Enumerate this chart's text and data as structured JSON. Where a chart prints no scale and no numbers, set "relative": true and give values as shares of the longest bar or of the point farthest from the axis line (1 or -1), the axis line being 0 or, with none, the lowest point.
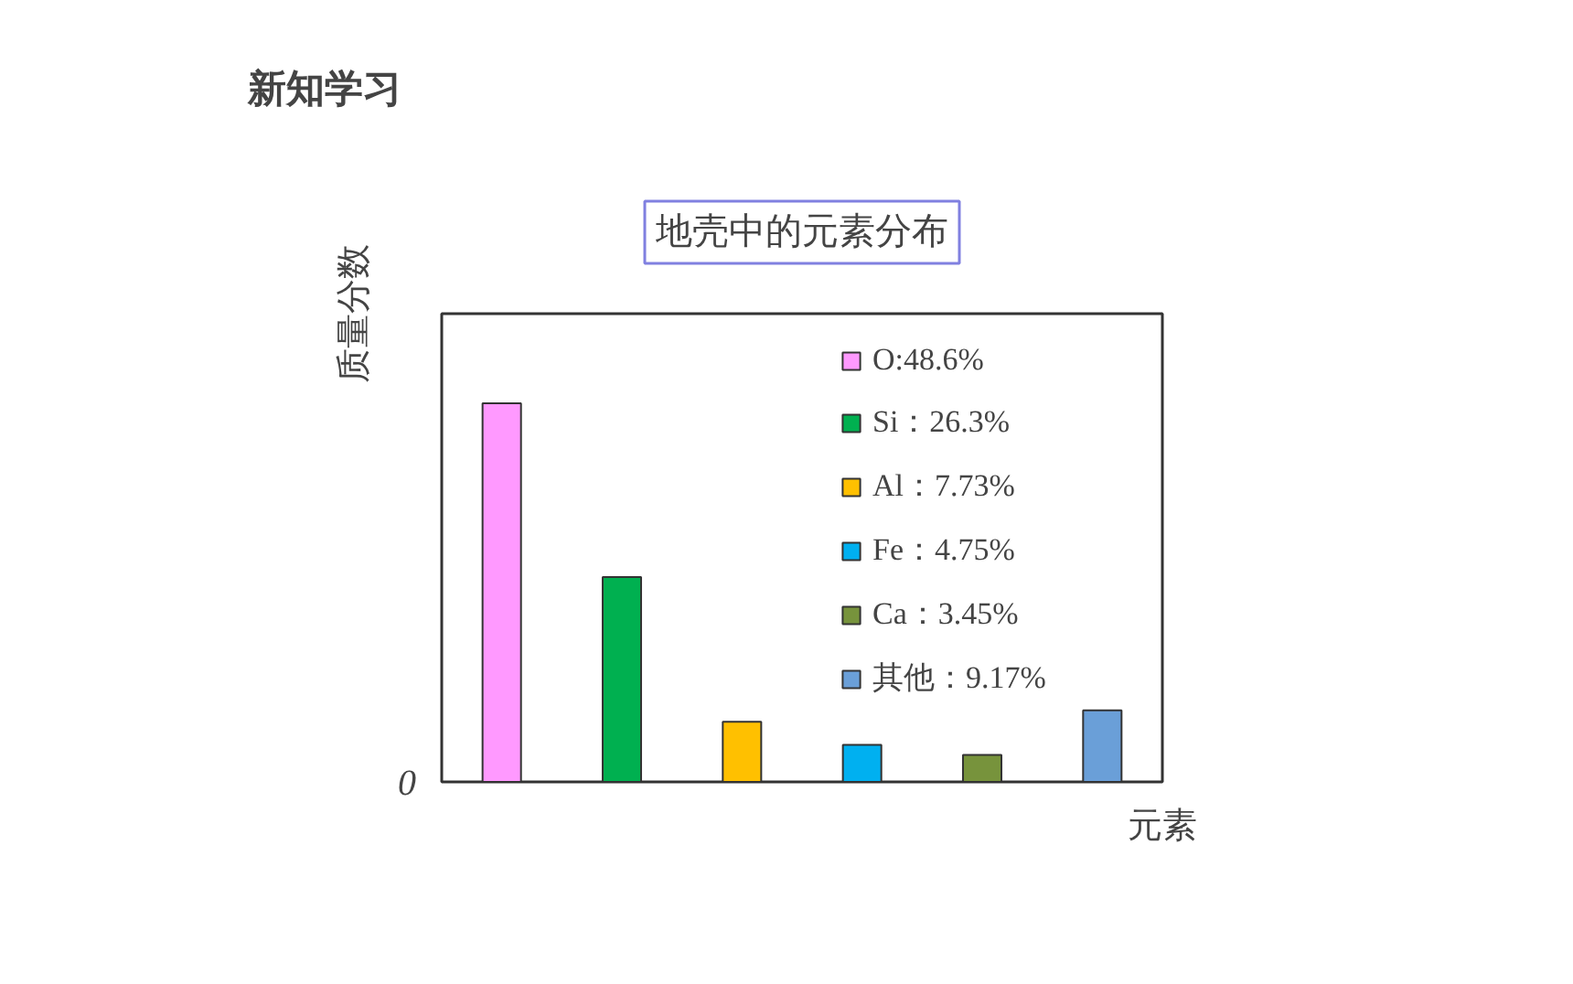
{
  "chart_data": {
    "type": "bar",
    "title": "地壳中的元素分布",
    "annotations": [
      "新知学习",
      "0"
    ],
    "xlabel": "元素",
    "ylabel": "质量分数",
    "categories": [
      null,
      null,
      null,
      null,
      null,
      null
    ],
    "series": [
      {
        "name": "O:48.6%",
        "color": "#ff99ff",
        "values": [
          1,
          null,
          null,
          null,
          null,
          null
        ]
      },
      {
        "name": "Si：26.3%",
        "color": "#00b050",
        "values": [
          null,
          0.541,
          null,
          null,
          null,
          null
        ]
      },
      {
        "name": "Al：7.73%",
        "color": "#ffc000",
        "values": [
          null,
          null,
          0.159,
          null,
          null,
          null
        ]
      },
      {
        "name": "Fe：4.75%",
        "color": "#00b0f0",
        "values": [
          null,
          null,
          null,
          0.098,
          null,
          null
        ]
      },
      {
        "name": "Ca：3.45%",
        "color": "#77933c",
        "values": [
          null,
          null,
          null,
          null,
          0.071,
          null
        ]
      },
      {
        "name": "其他：9.17%",
        "color": "#6a9fd8",
        "values": [
          null,
          null,
          null,
          null,
          null,
          0.189
        ]
      }
    ],
    "stacked": true,
    "relative": true,
    "grid": false,
    "legend": "top right"
  }
}
